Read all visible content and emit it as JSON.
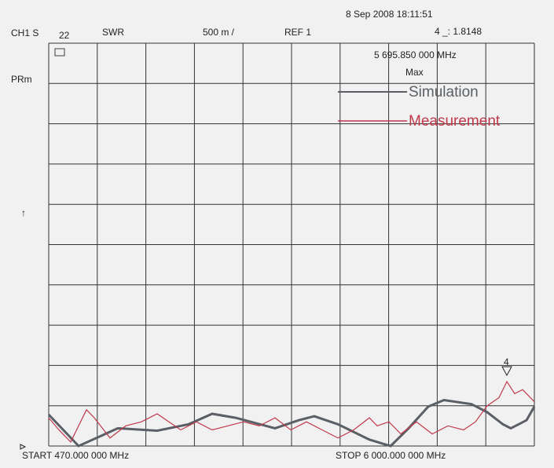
{
  "header": {
    "channel": "CH1 S",
    "param_index": "22",
    "format": "SWR",
    "scale": "500 m /",
    "reference": "REF 1",
    "timestamp": "8 Sep 2008 18:11:51",
    "marker_readout": "4 _: 1.8148",
    "marker_frequency": "5 695.850 000 MHz",
    "marker_mode": "Max",
    "side_label": "PRm",
    "ref_arrow": "↑",
    "start": "START  470.000 000 MHz",
    "stop": "STOP 6 000.000 000 MHz",
    "marker_number": "4"
  },
  "chart_data": {
    "type": "line",
    "xlim": [
      470,
      6000
    ],
    "xticks": [
      470,
      1023,
      1576,
      2129,
      2682,
      3235,
      3788,
      4341,
      4894,
      5447,
      6000
    ],
    "ylim": [
      1,
      6
    ],
    "yticks": [
      1,
      1.5,
      2,
      2.5,
      3,
      3.5,
      4,
      4.5,
      5,
      5.5,
      6
    ],
    "grid": true,
    "series": [
      {
        "name": "Simulation",
        "color": "#5a5f66",
        "x": [
          470,
          810,
          1257,
          1705,
          2063,
          2331,
          2600,
          3047,
          3316,
          3494,
          3763,
          4121,
          4363,
          4568,
          4792,
          4971,
          5284,
          5463,
          5642,
          5732,
          5911,
          6000
        ],
        "values": [
          1.39,
          1.0,
          1.22,
          1.19,
          1.27,
          1.4,
          1.35,
          1.22,
          1.32,
          1.37,
          1.27,
          1.08,
          1.0,
          1.22,
          1.49,
          1.57,
          1.52,
          1.42,
          1.27,
          1.22,
          1.32,
          1.49
        ]
      },
      {
        "name": "Measurement",
        "color": "#c0394b",
        "x": [
          470,
          586,
          720,
          900,
          989,
          1168,
          1347,
          1526,
          1705,
          1839,
          1973,
          2152,
          2331,
          2510,
          2689,
          2868,
          3047,
          3226,
          3405,
          3584,
          3763,
          3942,
          4121,
          4210,
          4344,
          4479,
          4658,
          4837,
          5016,
          5194,
          5329,
          5463,
          5597,
          5687,
          5776,
          5866,
          6000
        ],
        "values": [
          1.35,
          1.2,
          1.05,
          1.45,
          1.35,
          1.1,
          1.25,
          1.3,
          1.4,
          1.3,
          1.2,
          1.3,
          1.2,
          1.25,
          1.3,
          1.25,
          1.35,
          1.2,
          1.3,
          1.2,
          1.1,
          1.2,
          1.35,
          1.25,
          1.3,
          1.15,
          1.3,
          1.15,
          1.25,
          1.2,
          1.3,
          1.5,
          1.6,
          1.8,
          1.65,
          1.7,
          1.55
        ]
      }
    ]
  }
}
